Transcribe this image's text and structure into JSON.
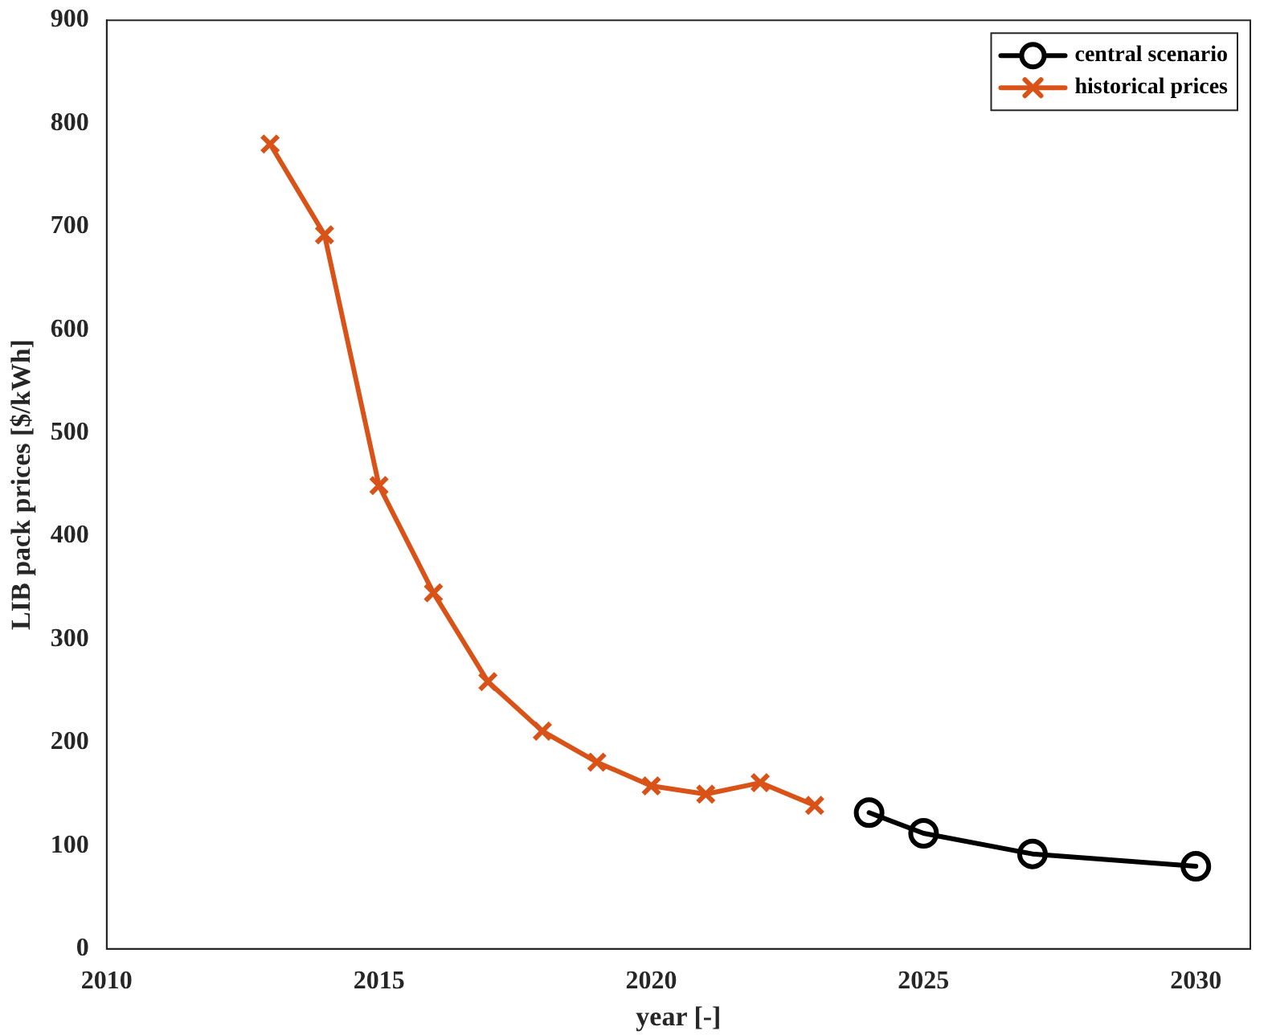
{
  "chart_data": {
    "type": "line",
    "xlabel": "year [-]",
    "ylabel": "LIB pack prices [$/kWh]",
    "xlim": [
      2010,
      2031
    ],
    "xticks": [
      2010,
      2015,
      2020,
      2025,
      2030
    ],
    "ylim": [
      0,
      900
    ],
    "yticks": [
      0,
      100,
      200,
      300,
      400,
      500,
      600,
      700,
      800,
      900
    ],
    "grid": false,
    "legend": "top right",
    "line_style": "solid",
    "series": [
      {
        "name": "central scenario",
        "color": "#000000",
        "marker": "circle",
        "x": [
          2024,
          2025,
          2027,
          2030
        ],
        "values": [
          132,
          112,
          92,
          80
        ]
      },
      {
        "name": "historical prices",
        "color": "#d95319",
        "marker": "cross",
        "x": [
          2013,
          2014,
          2015,
          2016,
          2017,
          2018,
          2019,
          2020,
          2021,
          2022,
          2023
        ],
        "values": [
          780,
          692,
          449,
          345,
          259,
          211,
          181,
          158,
          150,
          161,
          139
        ]
      }
    ]
  }
}
